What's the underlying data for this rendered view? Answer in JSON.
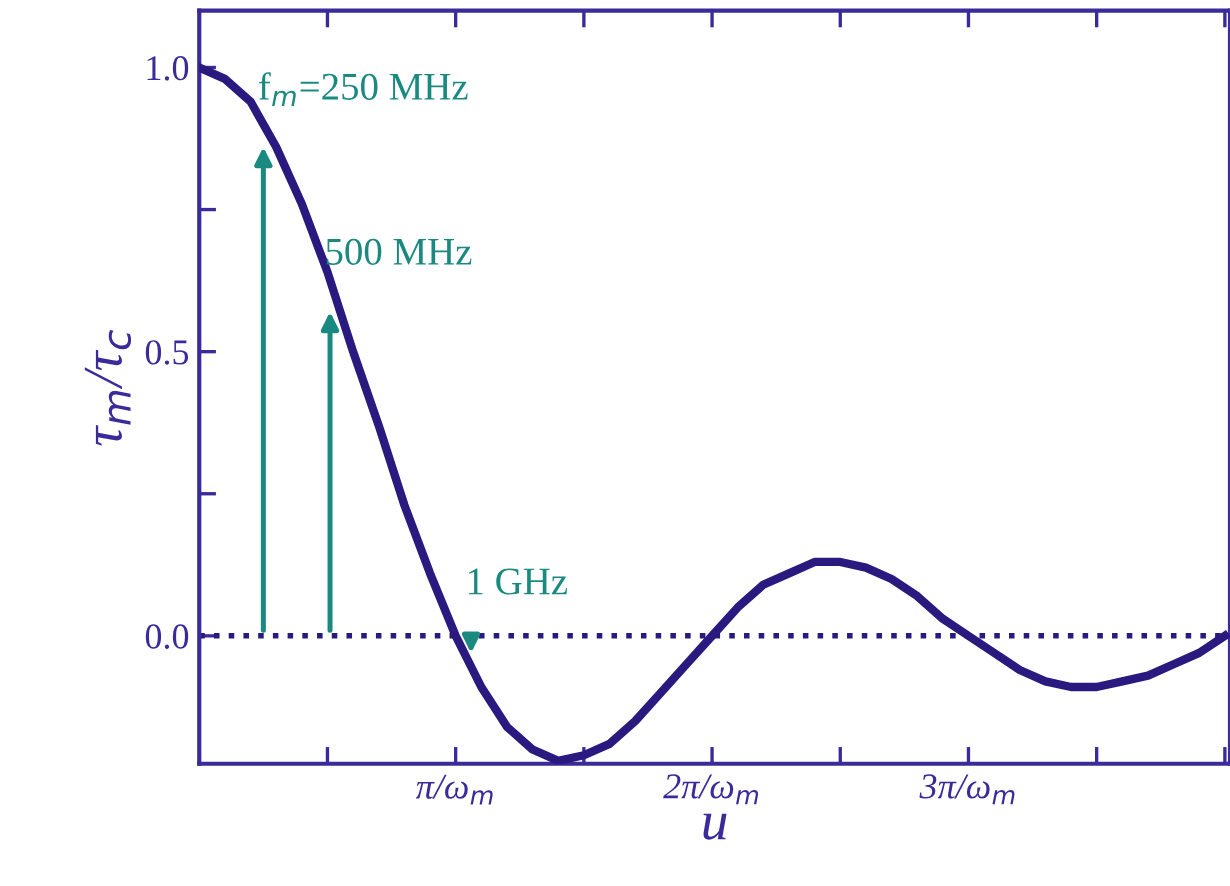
{
  "chart_data": {
    "type": "line",
    "xlabel": "u",
    "ylabel": "τ$_{m}$/τ$_{c}$",
    "x": [
      0,
      0.1,
      0.2,
      0.3,
      0.4,
      0.5,
      0.6,
      0.7,
      0.8,
      0.9,
      1.0,
      1.1,
      1.2,
      1.3,
      1.4,
      1.5,
      1.6,
      1.7,
      1.8,
      1.9,
      2.0,
      2.1,
      2.2,
      2.3,
      2.4,
      2.5,
      2.6,
      2.7,
      2.8,
      2.9,
      3.0,
      3.1,
      3.2,
      3.3,
      3.4,
      3.5,
      3.6,
      3.7,
      3.8,
      3.9,
      4.0
    ],
    "series": [
      {
        "color": "#2a1a80",
        "values": [
          1.0,
          0.98,
          0.94,
          0.86,
          0.76,
          0.64,
          0.5,
          0.37,
          0.23,
          0.11,
          0.0,
          -0.09,
          -0.16,
          -0.2,
          -0.22,
          -0.21,
          -0.19,
          -0.15,
          -0.1,
          -0.05,
          0.0,
          0.05,
          0.09,
          0.11,
          0.13,
          0.13,
          0.12,
          0.1,
          0.07,
          0.03,
          0.0,
          -0.03,
          -0.06,
          -0.08,
          -0.09,
          -0.09,
          -0.08,
          -0.07,
          -0.05,
          -0.03,
          0.0
        ]
      }
    ],
    "xlim": [
      0,
      4.02
    ],
    "ylim": [
      -0.225,
      1.1
    ],
    "xticks": [
      {
        "value": 0.5,
        "label": null
      },
      {
        "value": 1,
        "label": "π/ω$_{m}$"
      },
      {
        "value": 1.5,
        "label": null
      },
      {
        "value": 2,
        "label": "2π/ω$_{m}$"
      },
      {
        "value": 2.5,
        "label": null
      },
      {
        "value": 3,
        "label": "3π/ω$_{m}$"
      },
      {
        "value": 3.5,
        "label": null
      },
      {
        "value": 4,
        "label": null
      }
    ],
    "yticks": [
      {
        "value": 0,
        "label": "0.0"
      },
      {
        "value": 0.25,
        "label": null
      },
      {
        "value": 0.5,
        "label": "0.5"
      },
      {
        "value": 0.75,
        "label": null
      },
      {
        "value": 1,
        "label": "1.0"
      }
    ],
    "ref_lines": [
      {
        "axis": "y",
        "value": 0,
        "label": null,
        "color": "#2a1a80",
        "line_style": "dotted"
      }
    ],
    "annotations": [
      {
        "text": "f$_{m}$=250 MHz",
        "x": 0.25,
        "y": 0.87
      },
      {
        "text": "500 MHz",
        "x": 0.51,
        "y": 0.58
      },
      {
        "text": "1 GHz",
        "x": 1.06,
        "y": -0.04
      }
    ],
    "grid": false,
    "legend": false,
    "marker": "none",
    "line_style": "solid"
  }
}
